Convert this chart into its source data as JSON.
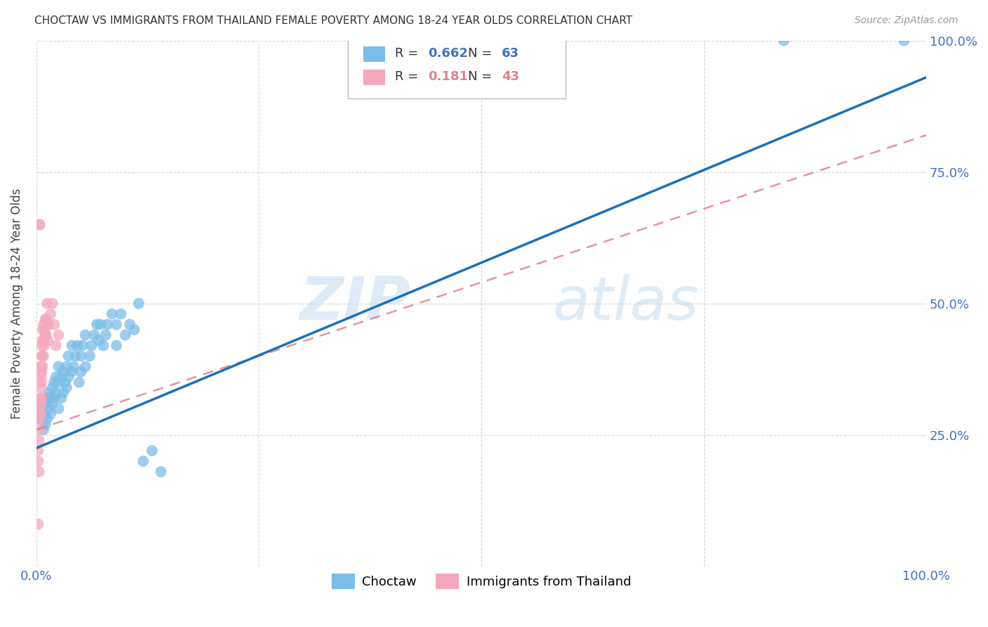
{
  "title": "CHOCTAW VS IMMIGRANTS FROM THAILAND FEMALE POVERTY AMONG 18-24 YEAR OLDS CORRELATION CHART",
  "source": "Source: ZipAtlas.com",
  "ylabel": "Female Poverty Among 18-24 Year Olds",
  "xlim": [
    0,
    1.0
  ],
  "ylim": [
    0,
    1.0
  ],
  "blue_color": "#7bbde8",
  "pink_color": "#f4a8be",
  "blue_line_color": "#1a6fba",
  "pink_line_color": "#e0828e",
  "R_blue": 0.662,
  "N_blue": 63,
  "R_pink": 0.181,
  "N_pink": 43,
  "watermark_zip": "ZIP",
  "watermark_atlas": "atlas",
  "legend_label_blue": "Choctaw",
  "legend_label_pink": "Immigrants from Thailand",
  "tick_color": "#4472c4",
  "blue_scatter": [
    [
      0.005,
      0.28
    ],
    [
      0.005,
      0.3
    ],
    [
      0.008,
      0.26
    ],
    [
      0.008,
      0.29
    ],
    [
      0.01,
      0.27
    ],
    [
      0.01,
      0.31
    ],
    [
      0.012,
      0.28
    ],
    [
      0.012,
      0.32
    ],
    [
      0.014,
      0.3
    ],
    [
      0.014,
      0.33
    ],
    [
      0.016,
      0.29
    ],
    [
      0.016,
      0.32
    ],
    [
      0.018,
      0.31
    ],
    [
      0.018,
      0.34
    ],
    [
      0.02,
      0.32
    ],
    [
      0.02,
      0.35
    ],
    [
      0.022,
      0.33
    ],
    [
      0.022,
      0.36
    ],
    [
      0.025,
      0.3
    ],
    [
      0.025,
      0.35
    ],
    [
      0.025,
      0.38
    ],
    [
      0.028,
      0.32
    ],
    [
      0.028,
      0.36
    ],
    [
      0.03,
      0.33
    ],
    [
      0.03,
      0.37
    ],
    [
      0.032,
      0.35
    ],
    [
      0.034,
      0.34
    ],
    [
      0.034,
      0.38
    ],
    [
      0.036,
      0.36
    ],
    [
      0.036,
      0.4
    ],
    [
      0.04,
      0.37
    ],
    [
      0.04,
      0.42
    ],
    [
      0.042,
      0.38
    ],
    [
      0.044,
      0.4
    ],
    [
      0.046,
      0.42
    ],
    [
      0.048,
      0.35
    ],
    [
      0.05,
      0.37
    ],
    [
      0.05,
      0.4
    ],
    [
      0.052,
      0.42
    ],
    [
      0.055,
      0.38
    ],
    [
      0.055,
      0.44
    ],
    [
      0.06,
      0.4
    ],
    [
      0.062,
      0.42
    ],
    [
      0.065,
      0.44
    ],
    [
      0.068,
      0.46
    ],
    [
      0.07,
      0.43
    ],
    [
      0.072,
      0.46
    ],
    [
      0.075,
      0.42
    ],
    [
      0.078,
      0.44
    ],
    [
      0.08,
      0.46
    ],
    [
      0.085,
      0.48
    ],
    [
      0.09,
      0.42
    ],
    [
      0.09,
      0.46
    ],
    [
      0.095,
      0.48
    ],
    [
      0.1,
      0.44
    ],
    [
      0.105,
      0.46
    ],
    [
      0.11,
      0.45
    ],
    [
      0.115,
      0.5
    ],
    [
      0.12,
      0.2
    ],
    [
      0.13,
      0.22
    ],
    [
      0.14,
      0.18
    ],
    [
      0.84,
      1.0
    ],
    [
      0.975,
      1.0
    ]
  ],
  "pink_scatter": [
    [
      0.002,
      0.2
    ],
    [
      0.002,
      0.22
    ],
    [
      0.003,
      0.18
    ],
    [
      0.003,
      0.24
    ],
    [
      0.004,
      0.26
    ],
    [
      0.004,
      0.28
    ],
    [
      0.004,
      0.3
    ],
    [
      0.004,
      0.32
    ],
    [
      0.005,
      0.29
    ],
    [
      0.005,
      0.31
    ],
    [
      0.005,
      0.34
    ],
    [
      0.005,
      0.36
    ],
    [
      0.005,
      0.38
    ],
    [
      0.006,
      0.32
    ],
    [
      0.006,
      0.35
    ],
    [
      0.006,
      0.37
    ],
    [
      0.006,
      0.4
    ],
    [
      0.006,
      0.42
    ],
    [
      0.007,
      0.38
    ],
    [
      0.007,
      0.4
    ],
    [
      0.007,
      0.43
    ],
    [
      0.007,
      0.45
    ],
    [
      0.008,
      0.4
    ],
    [
      0.008,
      0.43
    ],
    [
      0.008,
      0.46
    ],
    [
      0.009,
      0.42
    ],
    [
      0.009,
      0.45
    ],
    [
      0.01,
      0.44
    ],
    [
      0.01,
      0.47
    ],
    [
      0.011,
      0.44
    ],
    [
      0.011,
      0.47
    ],
    [
      0.012,
      0.46
    ],
    [
      0.012,
      0.5
    ],
    [
      0.013,
      0.43
    ],
    [
      0.014,
      0.46
    ],
    [
      0.016,
      0.48
    ],
    [
      0.018,
      0.5
    ],
    [
      0.02,
      0.46
    ],
    [
      0.022,
      0.42
    ],
    [
      0.025,
      0.44
    ],
    [
      0.003,
      0.65
    ],
    [
      0.004,
      0.65
    ],
    [
      0.002,
      0.08
    ]
  ]
}
